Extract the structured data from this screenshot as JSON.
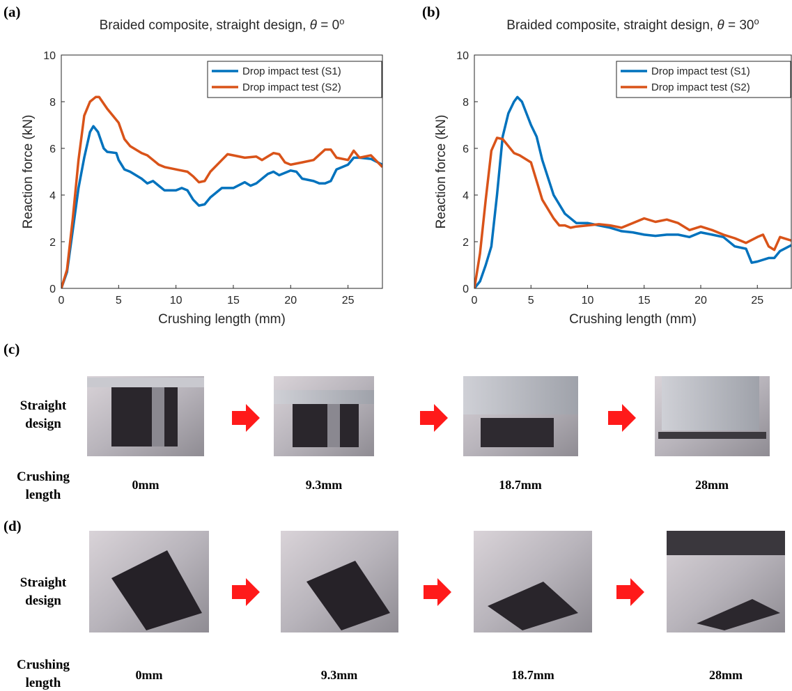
{
  "chart_data": [
    {
      "type": "line",
      "panel": "(a)",
      "title_parts": [
        "Braided composite, straight design, ",
        "θ",
        " = 0",
        "o"
      ],
      "xlabel": "Crushing length (mm)",
      "ylabel": "Reaction force (kN)",
      "xlim": [
        0,
        28
      ],
      "xticks": [
        0,
        5,
        10,
        15,
        20,
        25
      ],
      "ylim": [
        0,
        10
      ],
      "yticks": [
        0,
        2,
        4,
        6,
        8,
        10
      ],
      "legend": "upper right",
      "series": [
        {
          "name": "Drop impact test (S1)",
          "color": "#0072bd",
          "x": [
            0,
            0.5,
            1,
            1.5,
            2,
            2.5,
            2.8,
            3.2,
            3.7,
            4,
            4.8,
            5,
            5.5,
            6,
            7,
            7.5,
            8,
            8.5,
            9,
            10,
            10.5,
            11,
            11.5,
            12,
            12.5,
            13,
            14,
            15,
            16,
            16.5,
            17,
            18,
            18.5,
            19,
            20,
            20.5,
            21,
            22,
            22.5,
            23,
            23.5,
            24,
            25,
            25.5,
            26,
            27,
            28
          ],
          "values": [
            0,
            0.7,
            2.5,
            4.3,
            5.6,
            6.7,
            6.95,
            6.7,
            6.0,
            5.85,
            5.8,
            5.5,
            5.1,
            5.0,
            4.7,
            4.5,
            4.6,
            4.4,
            4.2,
            4.2,
            4.3,
            4.2,
            3.8,
            3.55,
            3.6,
            3.9,
            4.3,
            4.3,
            4.55,
            4.4,
            4.5,
            4.9,
            5.0,
            4.85,
            5.05,
            5.0,
            4.7,
            4.6,
            4.5,
            4.5,
            4.6,
            5.1,
            5.3,
            5.6,
            5.6,
            5.55,
            5.3
          ]
        },
        {
          "name": "Drop impact test (S2)",
          "color": "#d95319",
          "x": [
            0,
            0.5,
            1,
            1.5,
            2,
            2.5,
            3,
            3.3,
            4,
            4.5,
            5,
            5.5,
            6,
            7,
            7.5,
            8,
            8.5,
            9,
            10,
            11,
            11.5,
            12,
            12.5,
            13,
            14,
            14.5,
            15,
            16,
            17,
            17.5,
            18.5,
            19,
            19.5,
            20,
            21,
            22,
            23,
            23.5,
            24,
            25,
            25.5,
            26,
            27,
            28
          ],
          "values": [
            0,
            0.8,
            3,
            5.5,
            7.4,
            8.0,
            8.2,
            8.2,
            7.7,
            7.4,
            7.1,
            6.4,
            6.1,
            5.8,
            5.7,
            5.5,
            5.3,
            5.2,
            5.1,
            5.0,
            4.8,
            4.55,
            4.6,
            5.0,
            5.5,
            5.75,
            5.7,
            5.6,
            5.65,
            5.5,
            5.8,
            5.75,
            5.4,
            5.3,
            5.4,
            5.5,
            5.95,
            5.95,
            5.6,
            5.5,
            5.9,
            5.6,
            5.7,
            5.2
          ]
        }
      ]
    },
    {
      "type": "line",
      "panel": "(b)",
      "title_parts": [
        "Braided composite, straight design, ",
        "θ",
        " = 30",
        "o"
      ],
      "xlabel": "Crushing length (mm)",
      "ylabel": "Reaction force (kN)",
      "xlim": [
        0,
        28
      ],
      "xticks": [
        0,
        5,
        10,
        15,
        20,
        25
      ],
      "ylim": [
        0,
        10
      ],
      "yticks": [
        0,
        2,
        4,
        6,
        8,
        10
      ],
      "legend": "upper right",
      "series": [
        {
          "name": "Drop impact test (S1)",
          "color": "#0072bd",
          "x": [
            0,
            0.5,
            1,
            1.5,
            2,
            2.5,
            3,
            3.5,
            3.8,
            4.2,
            5,
            5.5,
            6,
            7,
            8,
            9,
            10,
            11,
            12,
            13,
            14,
            15,
            16,
            17,
            18,
            19,
            20,
            21,
            22,
            23,
            24,
            24.5,
            25,
            26,
            26.5,
            27,
            28
          ],
          "values": [
            0,
            0.3,
            1.0,
            1.8,
            4.0,
            6.5,
            7.5,
            8.0,
            8.2,
            8.0,
            7.0,
            6.5,
            5.5,
            4.0,
            3.2,
            2.8,
            2.8,
            2.7,
            2.6,
            2.45,
            2.4,
            2.3,
            2.25,
            2.3,
            2.3,
            2.2,
            2.4,
            2.3,
            2.2,
            1.8,
            1.7,
            1.1,
            1.15,
            1.3,
            1.3,
            1.6,
            1.85
          ]
        },
        {
          "name": "Drop impact test (S2)",
          "color": "#d95319",
          "x": [
            0,
            0.5,
            1,
            1.5,
            2,
            2.5,
            3,
            3.5,
            4,
            5,
            5.5,
            6,
            7,
            7.5,
            8,
            8.5,
            9,
            10,
            11,
            12,
            13,
            14,
            15,
            16,
            17,
            18,
            19,
            20,
            21,
            22,
            23,
            24,
            25,
            25.5,
            26,
            26.5,
            27,
            28
          ],
          "values": [
            0,
            1.5,
            3.8,
            5.9,
            6.45,
            6.4,
            6.1,
            5.8,
            5.7,
            5.4,
            4.6,
            3.8,
            3.0,
            2.7,
            2.7,
            2.6,
            2.65,
            2.7,
            2.75,
            2.7,
            2.6,
            2.8,
            3.0,
            2.85,
            2.95,
            2.8,
            2.5,
            2.65,
            2.5,
            2.3,
            2.15,
            1.95,
            2.2,
            2.3,
            1.8,
            1.65,
            2.2,
            2.05
          ]
        }
      ]
    }
  ],
  "photo_panels": [
    {
      "panel": "(c)",
      "row_label": [
        "Straight",
        "design"
      ],
      "length_label": [
        "Crushing",
        "length"
      ],
      "steps": [
        "0mm",
        "9.3mm",
        "18.7mm",
        "28mm"
      ]
    },
    {
      "panel": "(d)",
      "row_label": [
        "Straight",
        "design"
      ],
      "length_label": [
        "Crushing",
        "length"
      ],
      "steps": [
        "0mm",
        "9.3mm",
        "18.7mm",
        "28mm"
      ]
    }
  ]
}
